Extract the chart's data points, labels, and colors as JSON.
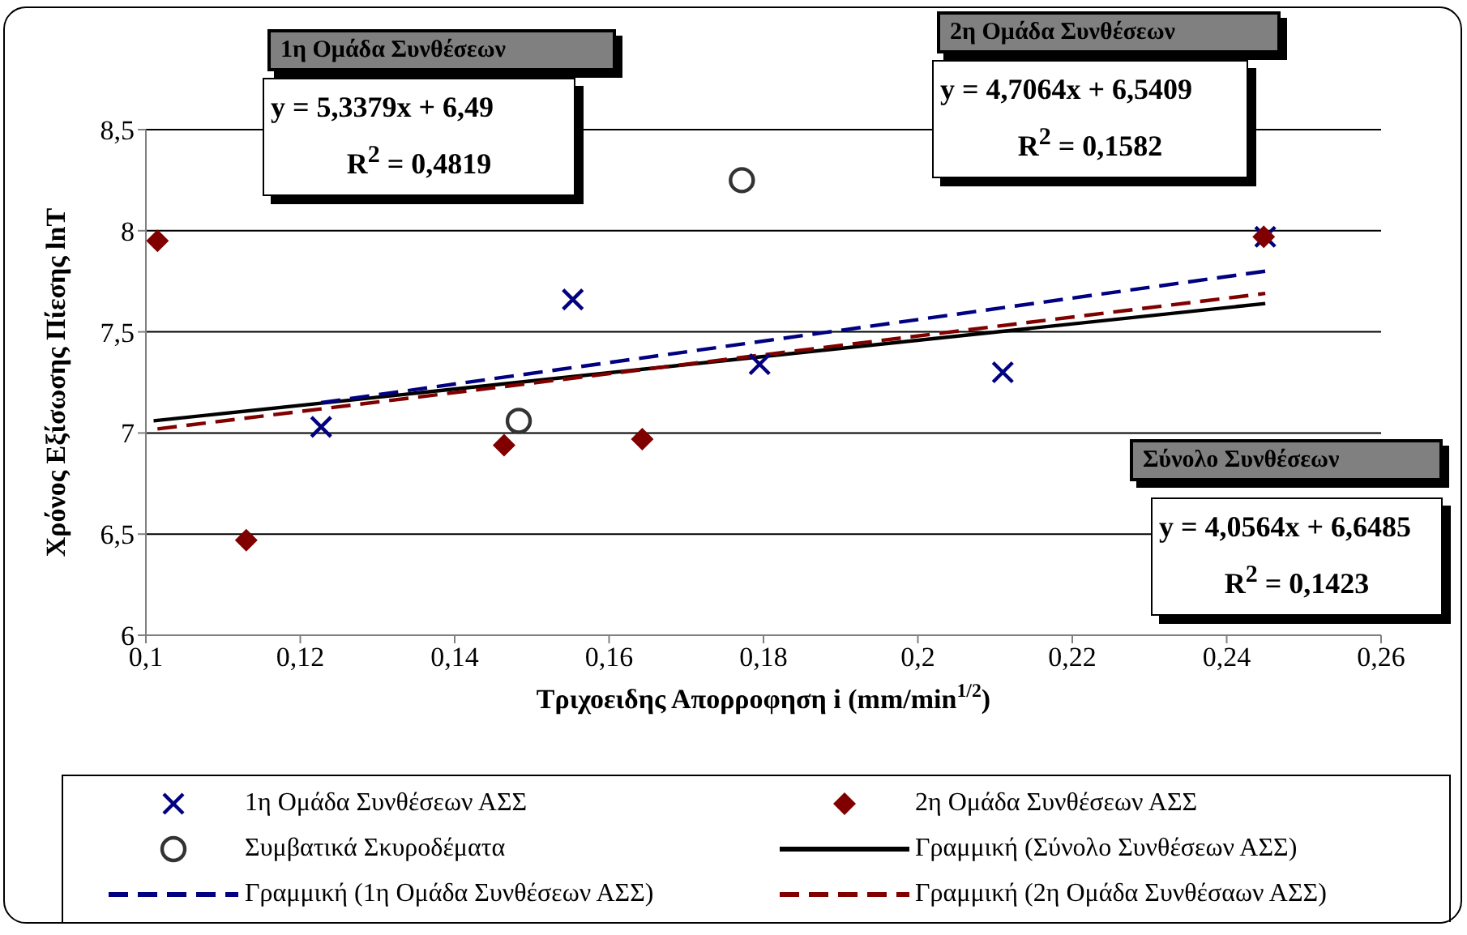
{
  "chart_data": {
    "type": "scatter",
    "xlabel": "Τριχοειδης Απορροφηση i (mm/min$^{1/2}$)",
    "ylabel": "Χρόνος Εξίσωσης Πίεσης lnT",
    "xlim": [
      0.1,
      0.26
    ],
    "xticks": [
      {
        "value": 0.1,
        "label": "0,1"
      },
      {
        "value": 0.12,
        "label": "0,12"
      },
      {
        "value": 0.14,
        "label": "0,14"
      },
      {
        "value": 0.16,
        "label": "0,16"
      },
      {
        "value": 0.18,
        "label": "0,18"
      },
      {
        "value": 0.2,
        "label": "0,2"
      },
      {
        "value": 0.22,
        "label": "0,22"
      },
      {
        "value": 0.24,
        "label": "0,24"
      },
      {
        "value": 0.26,
        "label": "0,26"
      }
    ],
    "ylim": [
      6,
      8.5
    ],
    "yticks": [
      6,
      {
        "value": 6.5,
        "label": "6,5"
      },
      7,
      {
        "value": 7.5,
        "label": "7,5"
      },
      8,
      {
        "value": 8.5,
        "label": "8,5"
      }
    ],
    "grid": "y",
    "legend": "bottom",
    "series": [
      {
        "name": "1η Ομάδα Συνθέσεων ΑΣΣ",
        "type": "scatter",
        "marker": "cross",
        "color": "#000080",
        "x": [
          0.1227,
          0.1553,
          0.1795,
          0.211,
          0.245
        ],
        "values": [
          7.03,
          7.66,
          7.34,
          7.3,
          7.97
        ]
      },
      {
        "name": "2η Ομάδα Συνθέσεων ΑΣΣ",
        "type": "scatter",
        "marker": "diamond",
        "color": "#800000",
        "x": [
          0.1015,
          0.113,
          0.1464,
          0.1643,
          0.2448
        ],
        "values": [
          7.95,
          6.47,
          6.94,
          6.97,
          7.97
        ]
      },
      {
        "name": "Συμβατικά Σκυροδέματα",
        "type": "scatter",
        "marker": "circle",
        "color": "#333333",
        "x": [
          0.1483,
          0.1772
        ],
        "values": [
          7.06,
          8.25
        ]
      },
      {
        "name": "Γραμμική (Σύνολο Συνθέσεων ΑΣΣ)",
        "type": "line",
        "marker": "none",
        "line_style": "solid",
        "color": "#000000",
        "x": [
          0.101,
          0.245
        ],
        "values": [
          7.06,
          7.64
        ]
      },
      {
        "name": "Γραμμική (1η Ομάδα Συνθέσεων ΑΣΣ)",
        "type": "line",
        "marker": "none",
        "line_style": "dashed",
        "color": "#000080",
        "x": [
          0.1227,
          0.245
        ],
        "values": [
          7.15,
          7.8
        ]
      },
      {
        "name": "Γραμμική (2η Ομάδα Συνθέσαων ΑΣΣ)",
        "type": "line",
        "marker": "none",
        "line_style": "dashed",
        "color": "#800000",
        "x": [
          0.1015,
          0.245
        ],
        "values": [
          7.02,
          7.69
        ]
      }
    ],
    "annotations": [
      "1η Ομάδα Συνθέσεων",
      "y = 5,3379x + 6,49",
      "R$^{2}$ = 0,4819",
      "2η Ομάδα Συνθέσεων",
      "y = 4,7064x + 6,5409",
      "R$^{2}$ = 0,1582",
      "Σύνολο Συνθέσεων",
      "y = 4,0564x + 6,6485",
      "R$^{2}$ = 0,1423"
    ]
  }
}
